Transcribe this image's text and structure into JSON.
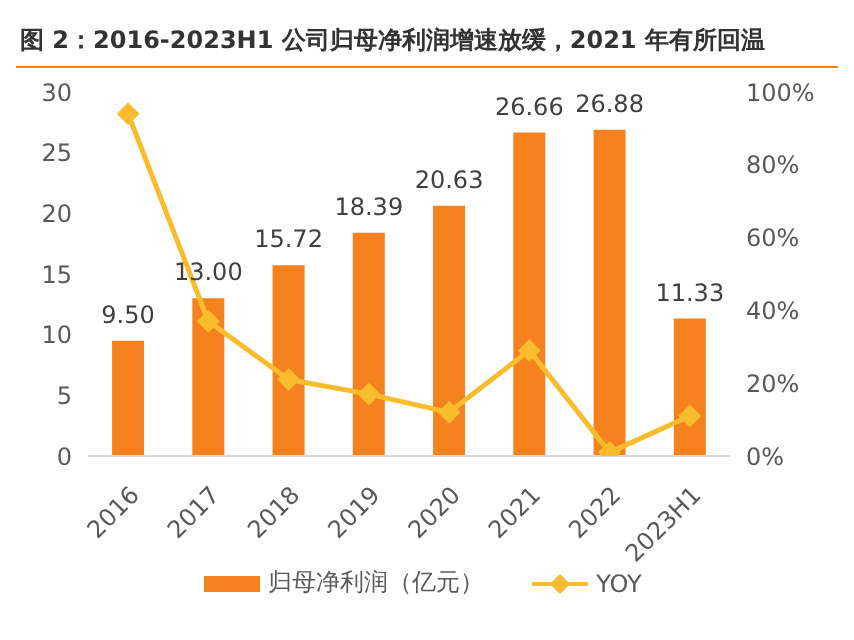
{
  "chart_data": {
    "type": "bar",
    "title": "图 2：2016-2023H1 公司归母净利润增速放缓，2021 年有所回温",
    "categories": [
      "2016",
      "2017",
      "2018",
      "2019",
      "2020",
      "2021",
      "2022",
      "2023H1"
    ],
    "series": [
      {
        "name": "归母净利润（亿元）",
        "color": "#f5821f",
        "values": [
          9.5,
          13.0,
          15.72,
          18.39,
          20.63,
          26.66,
          26.88,
          11.33
        ],
        "value_labels": [
          "9.50",
          "13.00",
          "15.72",
          "18.39",
          "20.63",
          "26.66",
          "26.88",
          "11.33"
        ]
      },
      {
        "name": "YOY",
        "type": "line",
        "axis": "y2",
        "color": "#f9bc2c",
        "marker": "diamond",
        "values": [
          94,
          37,
          21,
          17,
          12,
          29,
          1,
          11
        ]
      }
    ],
    "ylim": [
      0,
      30
    ],
    "yticks": [
      0,
      5,
      10,
      15,
      20,
      25,
      30
    ],
    "y2lim": [
      0,
      100
    ],
    "y2ticks": [
      {
        "value": 0,
        "label": "0%"
      },
      {
        "value": 20,
        "label": "20%"
      },
      {
        "value": 40,
        "label": "40%"
      },
      {
        "value": 60,
        "label": "60%"
      },
      {
        "value": 80,
        "label": "80%"
      },
      {
        "value": 100,
        "label": "100%"
      }
    ],
    "grid": false,
    "legend": "bottom"
  }
}
